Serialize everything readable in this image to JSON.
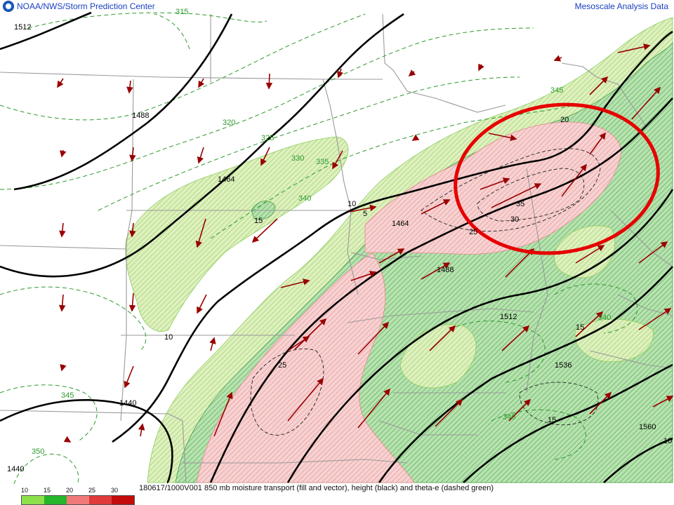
{
  "header": {
    "agency": "NOAA/NWS/Storm Prediction Center",
    "product": "Mesoscale Analysis Data"
  },
  "caption": "180617/1000V001 850 mb moisture transport (fill and vector), height (black) and theta-e (dashed green)",
  "legend": {
    "labels": [
      "10",
      "15",
      "20",
      "25",
      "30"
    ],
    "colors": [
      "#8ee04a",
      "#27b52b",
      "#f07a7a",
      "#e03a3a",
      "#c40c0c"
    ]
  },
  "height_labels": [
    "1512",
    "1488",
    "1464",
    "1464",
    "1488",
    "1512",
    "1536",
    "1560",
    "1440",
    "1440"
  ],
  "theta_e_labels": [
    "315",
    "320",
    "325",
    "330",
    "335",
    "340",
    "345",
    "345",
    "340",
    "340",
    "350"
  ],
  "transport_labels": [
    "15",
    "10",
    "10",
    "5",
    "20",
    "25",
    "30",
    "35",
    "25",
    "15",
    "15",
    "10"
  ],
  "colors": {
    "height": "#000000",
    "theta_e": "#2e9a2e",
    "border": "#9a9a9a",
    "highlight": "#e60000",
    "vector": "#990000"
  }
}
